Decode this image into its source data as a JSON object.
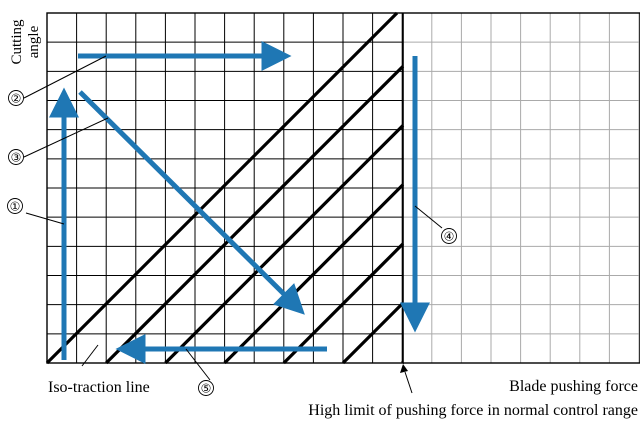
{
  "axes": {
    "y_label_line1": "Cutting",
    "y_label_line2": "angle",
    "x_label": "Blade pushing force"
  },
  "annotations": {
    "iso_traction_line": "Iso-traction line",
    "high_limit": "High limit of pushing force in normal control range"
  },
  "markers": [
    {
      "id": "m1",
      "text": "①"
    },
    {
      "id": "m2",
      "text": "②"
    },
    {
      "id": "m3",
      "text": "③"
    },
    {
      "id": "m4",
      "text": "④"
    },
    {
      "id": "m5",
      "text": "⑤"
    }
  ],
  "colors": {
    "grid_inner": "#000000",
    "grid_outer": "#aaaaaa",
    "iso_line": "#000000",
    "arrow": "#1f77b4"
  },
  "grid": {
    "columns": 24,
    "rows": 12,
    "iso_traction_line_count": 10
  }
}
